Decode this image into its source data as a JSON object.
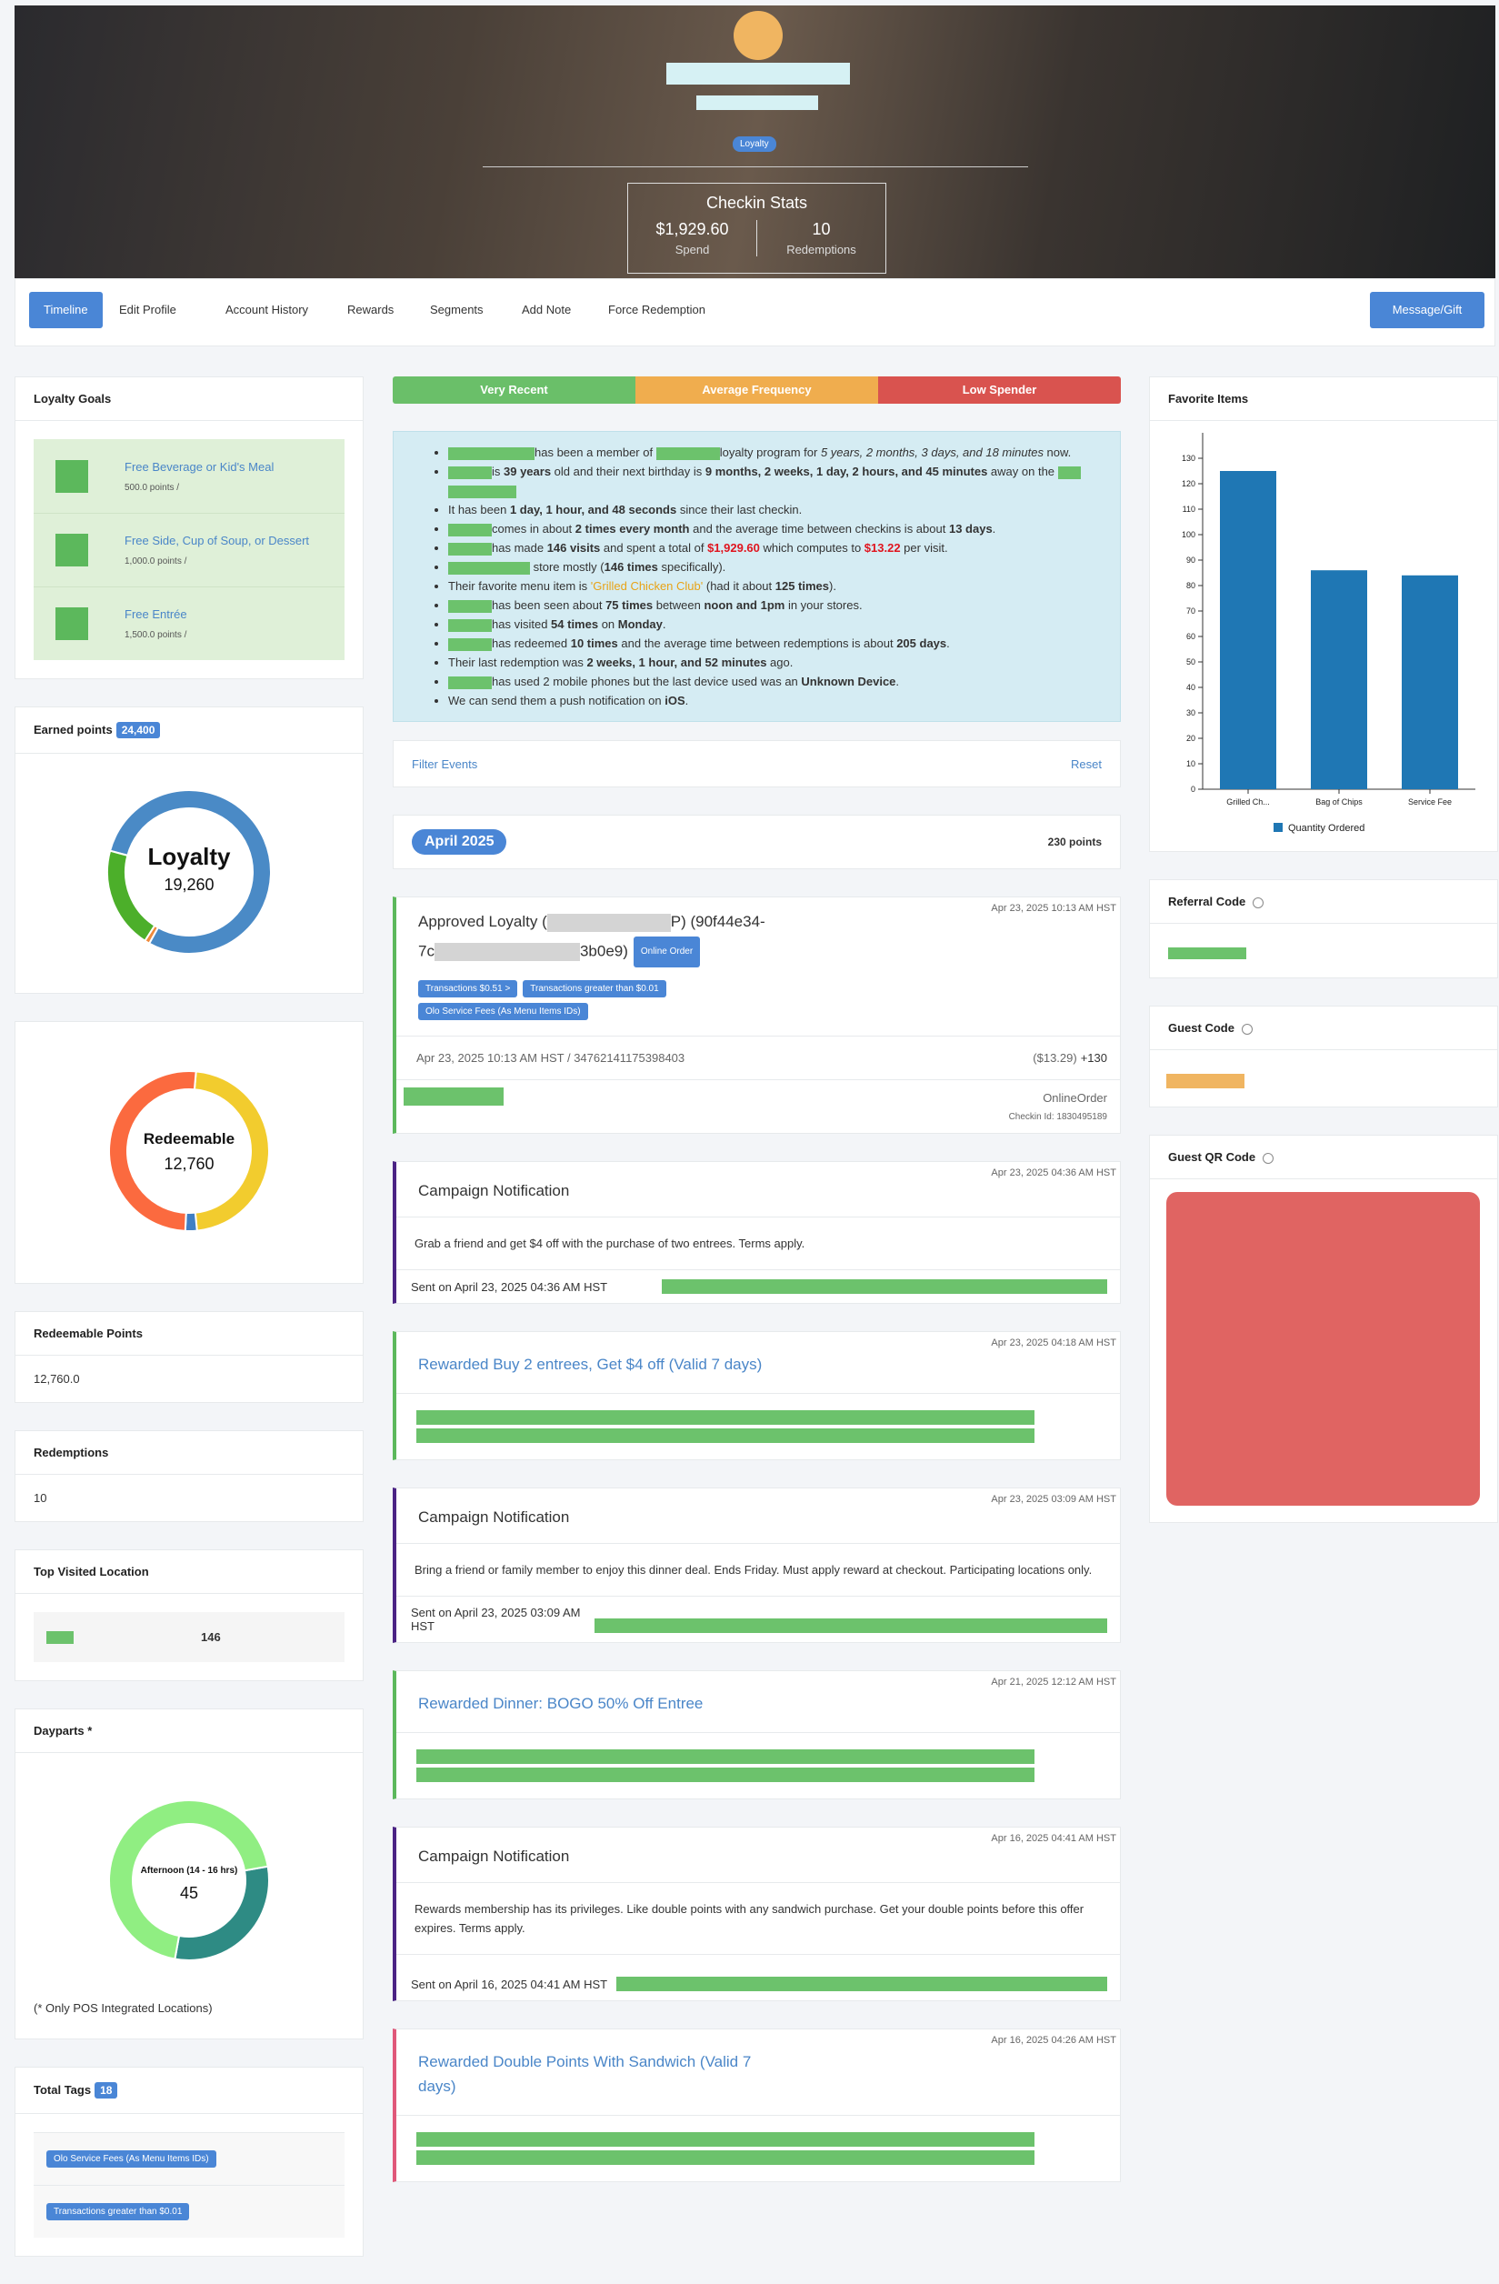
{
  "header": {
    "badge": "Loyalty",
    "stats_title": "Checkin Stats",
    "stats": [
      {
        "value": "$1,929.60",
        "label": "Spend"
      },
      {
        "value": 10,
        "label": "Redemptions"
      }
    ]
  },
  "nav": {
    "tabs": [
      "Timeline",
      "Edit Profile",
      "Account History",
      "Rewards",
      "Segments",
      "Add Note",
      "Force Redemption"
    ],
    "active": 0,
    "action": "Message/Gift"
  },
  "loyalty_goals": {
    "title": "Loyalty Goals",
    "items": [
      {
        "name": "Free Beverage or Kid's Meal",
        "points": "500.0 points /"
      },
      {
        "name": "Free Side, Cup of Soup, or Dessert",
        "points": "1,000.0 points /"
      },
      {
        "name": "Free Entrée",
        "points": "1,500.0 points /"
      }
    ]
  },
  "earned_points": {
    "title": "Earned points",
    "badge": "24,400",
    "center_label": "Loyalty",
    "center_value": "19,260",
    "values": [
      19260,
      240,
      4900
    ],
    "colors": [
      "#4a8ac6",
      "#f08a3c",
      "#4caf2a"
    ]
  },
  "redeemable_chart": {
    "center_label": "Redeemable",
    "center_value": "12,760",
    "values": [
      6000,
      300,
      6460
    ],
    "colors": [
      "#f2cc2e",
      "#3f7fc4",
      "#fb6a3f"
    ]
  },
  "redeemable_points": {
    "title": "Redeemable Points",
    "value": "12,760.0"
  },
  "redemptions": {
    "title": "Redemptions",
    "value": 10
  },
  "top_location": {
    "title": "Top Visited Location",
    "visits": 146
  },
  "dayparts": {
    "title": "Dayparts *",
    "center_label": "Afternoon (14 - 16 hrs)",
    "center_value": 45,
    "values": [
      45,
      102
    ],
    "colors": [
      "#2e8b84",
      "#90ee82"
    ],
    "note": "(* Only POS Integrated Locations)"
  },
  "total_tags": {
    "title": "Total Tags",
    "count": 18,
    "tags": [
      "Olo Service Fees (As Menu Items IDs)",
      "Transactions greater than $0.01"
    ]
  },
  "segments": [
    {
      "label": "Very Recent",
      "color": "#6abf69"
    },
    {
      "label": "Average Frequency",
      "color": "#f0ad4e"
    },
    {
      "label": "Low Spender",
      "color": "#d9534f"
    }
  ],
  "summary": [
    [
      "has been a member of ",
      "loyalty program for ",
      "5 years, 2 months, 3 days, and 18 minutes",
      " now."
    ],
    [
      "is ",
      "39 years",
      " old and their next birthday is ",
      "9 months, 2 weeks, 1 day, 2 hours, and 45 minutes",
      " away on the "
    ],
    [
      "It has been ",
      "1 day, 1 hour, and 48 seconds",
      " since their last checkin."
    ],
    [
      "comes in about ",
      "2 times every month",
      " and the average time between checkins is about ",
      "13 days",
      "."
    ],
    [
      "has made ",
      "146 visits",
      " and spent a total of ",
      "$1,929.60",
      " which computes to ",
      "$13.22",
      " per visit."
    ],
    [
      " store mostly (",
      "146 times",
      " specifically)."
    ],
    [
      "Their favorite menu item is ",
      "'Grilled Chicken Club'",
      " (had it about ",
      "125 times",
      ")."
    ],
    [
      "has been seen about ",
      "75 times",
      " between ",
      "noon and 1pm",
      " in your stores."
    ],
    [
      "has visited ",
      "54 times",
      " on ",
      "Monday",
      "."
    ],
    [
      "has redeemed ",
      "10 times",
      " and the average time between redemptions is about ",
      "205 days",
      "."
    ],
    [
      "Their last redemption was ",
      "2 weeks, 1 hour, and 52 minutes",
      " ago."
    ],
    [
      "has used 2 mobile phones but the last device used was an ",
      "Unknown Device",
      "."
    ],
    [
      "We can send them a push notification on ",
      "iOS",
      "."
    ]
  ],
  "filter": {
    "label": "Filter Events",
    "reset": "Reset"
  },
  "month": {
    "label": "April 2025",
    "points": "230 points"
  },
  "events": [
    {
      "kind": "loyalty",
      "color": "#5cb85c",
      "title_parts": [
        "Approved Loyalty (",
        "P) (90f44e34-",
        "7c",
        "3b0e9)"
      ],
      "badge": "Online Order",
      "tags": [
        "Transactions $0.51 >",
        "Transactions greater than $0.01",
        "Olo Service Fees (As Menu Items IDs)"
      ],
      "time": "Apr 23, 2025 10:13 AM HST",
      "detail": "Apr 23, 2025 10:13 AM HST / 34762141175398403",
      "amount": "($13.29)",
      "points": "+130",
      "source": "OnlineOrder",
      "checkin": "Checkin Id: 1830495189"
    },
    {
      "kind": "campaign",
      "color": "#4b2384",
      "title": "Campaign Notification",
      "time": "Apr 23, 2025 04:36 AM HST",
      "body": "Grab a friend and get $4 off with the purchase of two entrees. Terms apply.",
      "sent": "Sent on April 23, 2025 04:36 AM HST"
    },
    {
      "kind": "reward",
      "color": "#5cb85c",
      "title": "Rewarded Buy 2 entrees, Get $4 off (Valid 7 days)",
      "time": "Apr 23, 2025 04:18 AM HST"
    },
    {
      "kind": "campaign",
      "color": "#4b2384",
      "title": "Campaign Notification",
      "time": "Apr 23, 2025 03:09 AM HST",
      "body": "Bring a friend or family member to enjoy this dinner deal. Ends Friday. Must apply reward at checkout. Participating locations only.",
      "sent": "Sent on April 23, 2025 03:09 AM HST"
    },
    {
      "kind": "reward",
      "color": "#5cb85c",
      "title": "Rewarded Dinner: BOGO 50% Off Entree",
      "time": "Apr 21, 2025 12:12 AM HST"
    },
    {
      "kind": "campaign",
      "color": "#4b2384",
      "title": "Campaign Notification",
      "time": "Apr 16, 2025 04:41 AM HST",
      "body": "Rewards membership has its privileges. Like double points with any sandwich purchase. Get your double points before this offer expires. Terms apply.",
      "sent": "Sent on April 16, 2025 04:41 AM HST"
    },
    {
      "kind": "reward",
      "color": "#e0587a",
      "title": "Rewarded Double Points With Sandwich (Valid 7 days)",
      "time": "Apr 16, 2025 04:26 AM HST"
    }
  ],
  "chart_data": {
    "type": "bar",
    "title": "Favorite Items",
    "categories": [
      "Grilled Ch...",
      "Bag of Chips",
      "Service Fee"
    ],
    "series": [
      {
        "name": "Quantity Ordered",
        "color": "#1f77b4",
        "values": [
          125,
          86,
          84
        ]
      }
    ],
    "ylim": [
      0,
      140
    ],
    "yticks": [
      0,
      10,
      20,
      30,
      40,
      50,
      60,
      70,
      80,
      90,
      100,
      110,
      120,
      130
    ]
  },
  "referral_code": {
    "title": "Referral Code"
  },
  "guest_code": {
    "title": "Guest Code"
  },
  "guest_qr": {
    "title": "Guest QR Code"
  }
}
